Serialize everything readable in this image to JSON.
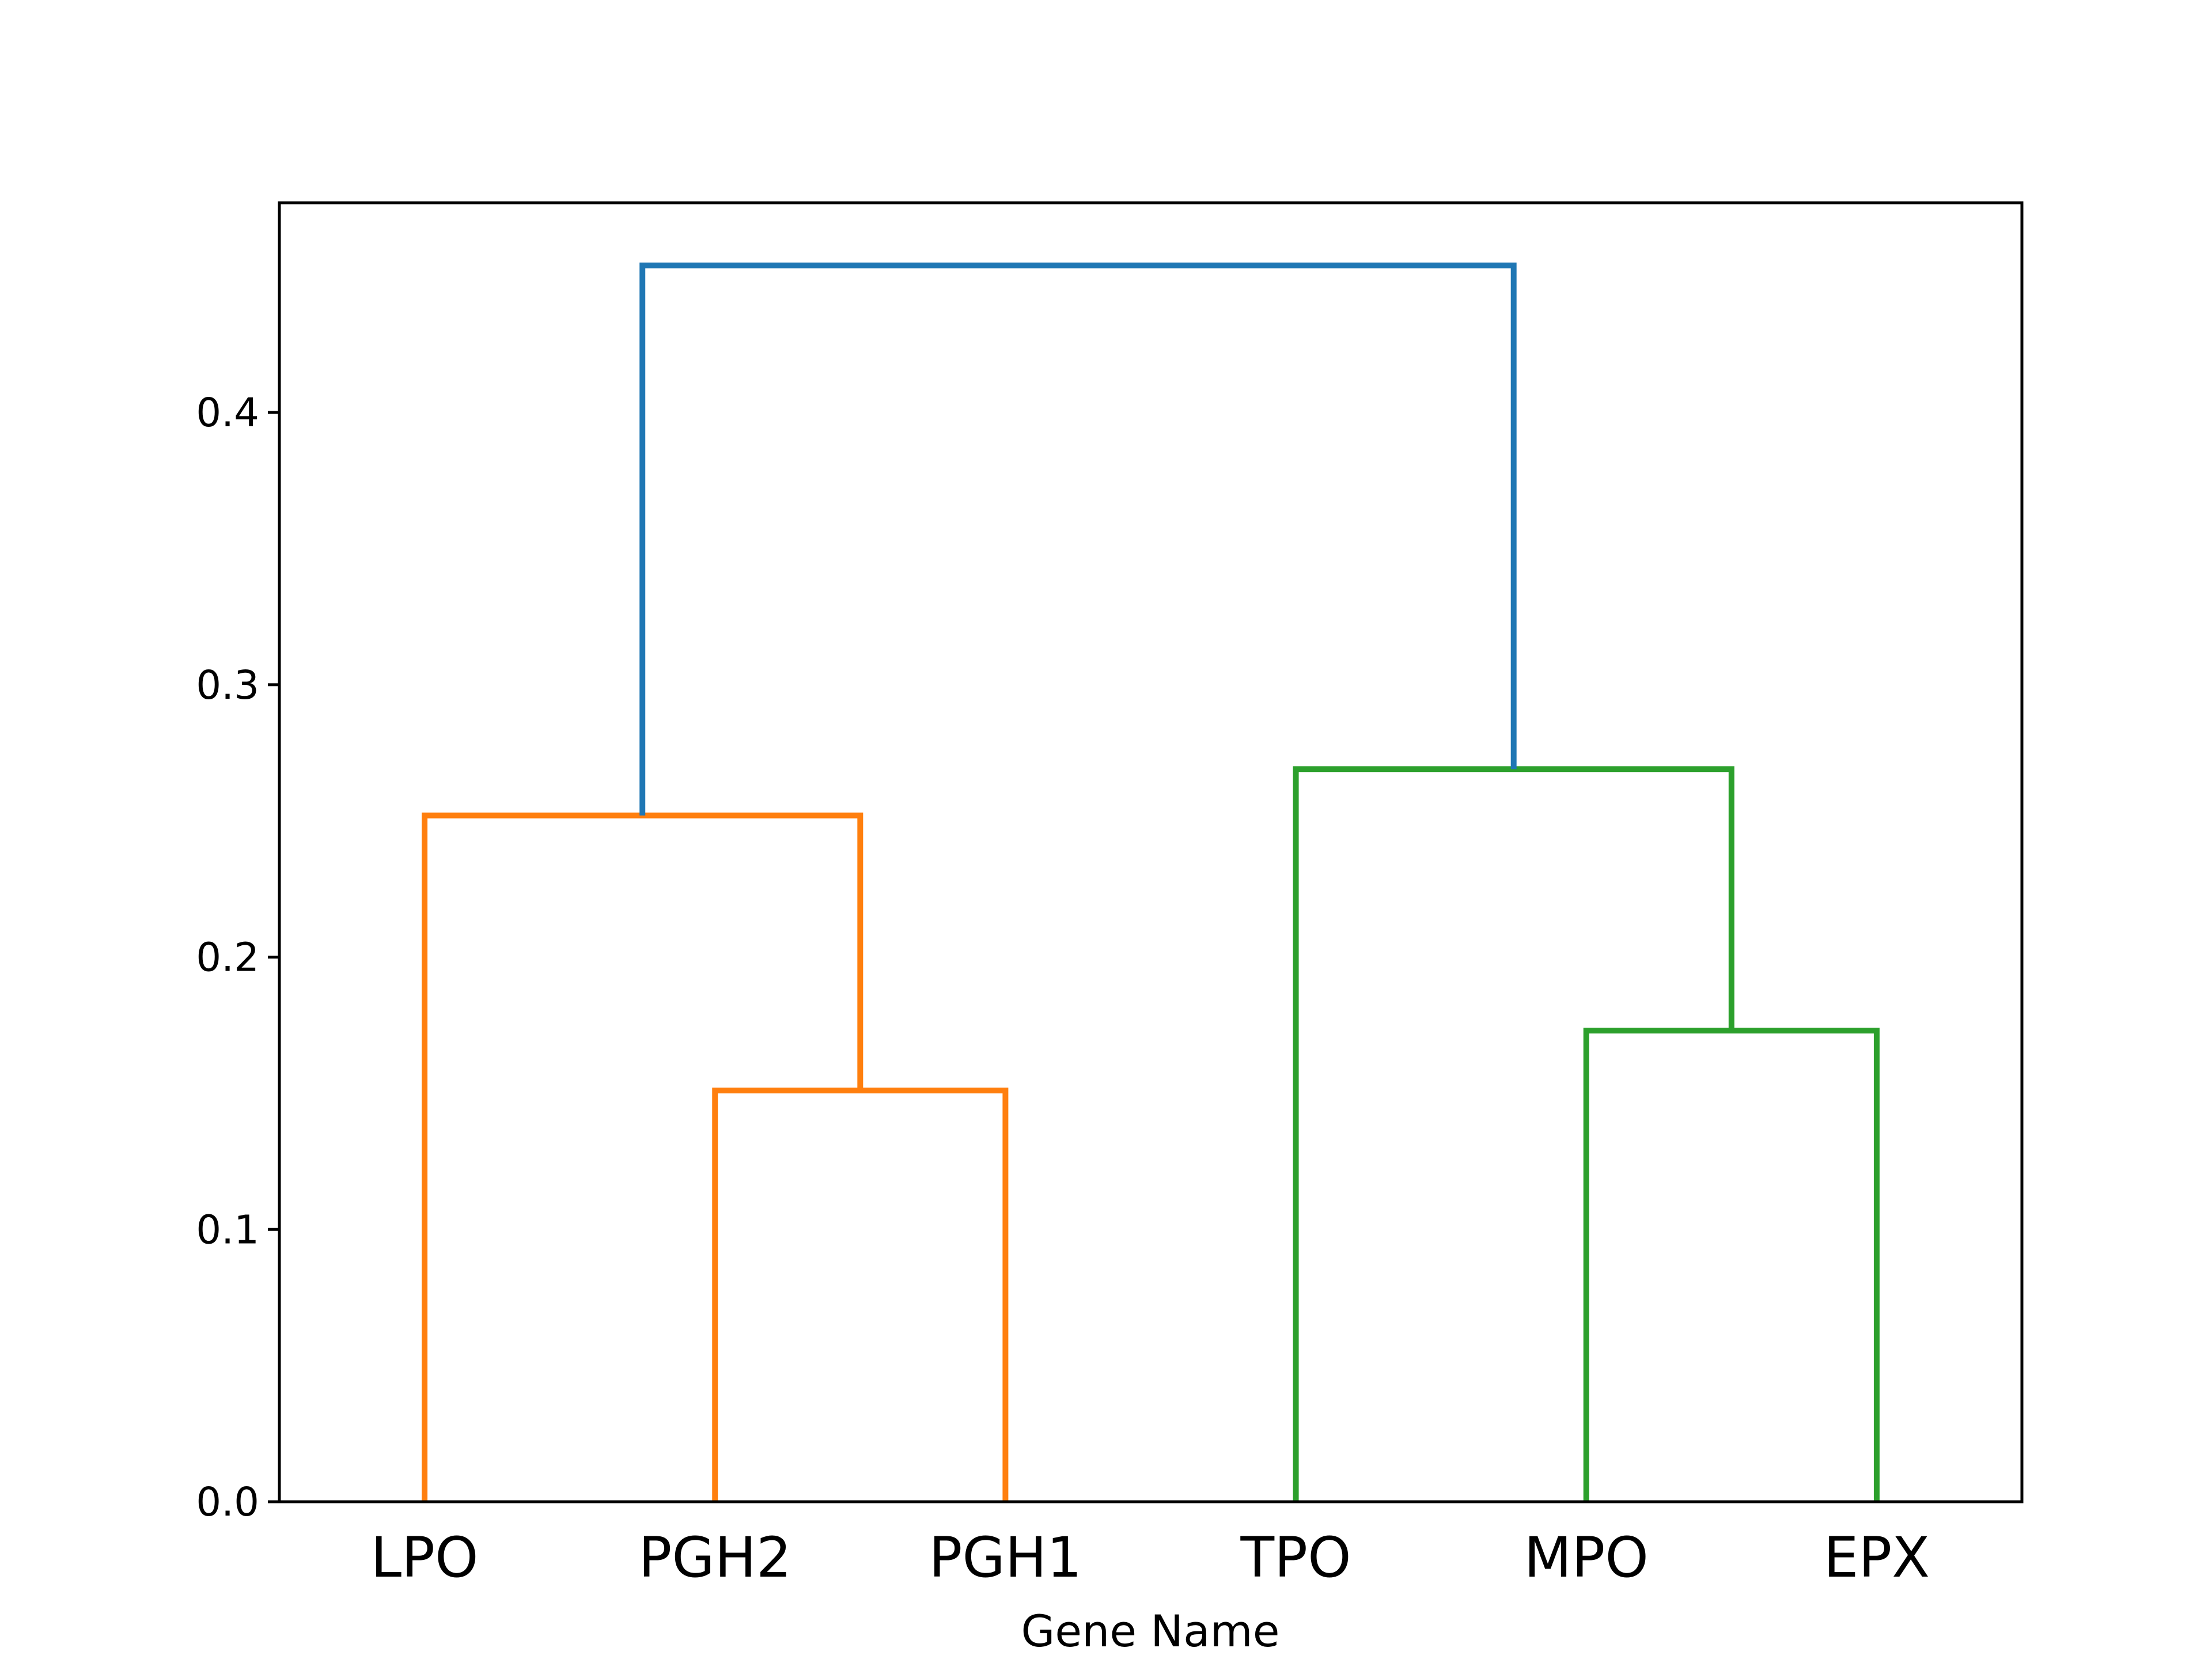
{
  "chart_data": {
    "type": "dendrogram",
    "title": "",
    "xlabel": "Gene Name",
    "ylabel": "",
    "ylim": [
      0,
      0.477
    ],
    "yticks": [
      0.0,
      0.1,
      0.2,
      0.3,
      0.4
    ],
    "ytick_labels": [
      "0.0",
      "0.1",
      "0.2",
      "0.3",
      "0.4"
    ],
    "leaves": [
      "LPO",
      "PGH2",
      "PGH1",
      "TPO",
      "MPO",
      "EPX"
    ],
    "grid": false,
    "legend": "none",
    "links": [
      {
        "left": "PGH2",
        "right": "PGH1",
        "height": 0.151,
        "cluster": "orange"
      },
      {
        "left": "MPO",
        "right": "EPX",
        "height": 0.173,
        "cluster": "green"
      },
      {
        "left": "LPO",
        "right": "PGH2+PGH1",
        "height": 0.252,
        "cluster": "orange"
      },
      {
        "left": "TPO",
        "right": "MPO+EPX",
        "height": 0.269,
        "cluster": "green"
      },
      {
        "left": "LPO+PGH2+PGH1",
        "right": "TPO+MPO+EPX",
        "height": 0.454,
        "cluster": "blue"
      }
    ],
    "colors": {
      "orange": "#ff7f0e",
      "green": "#2ca02c",
      "blue": "#1f77b4"
    }
  }
}
